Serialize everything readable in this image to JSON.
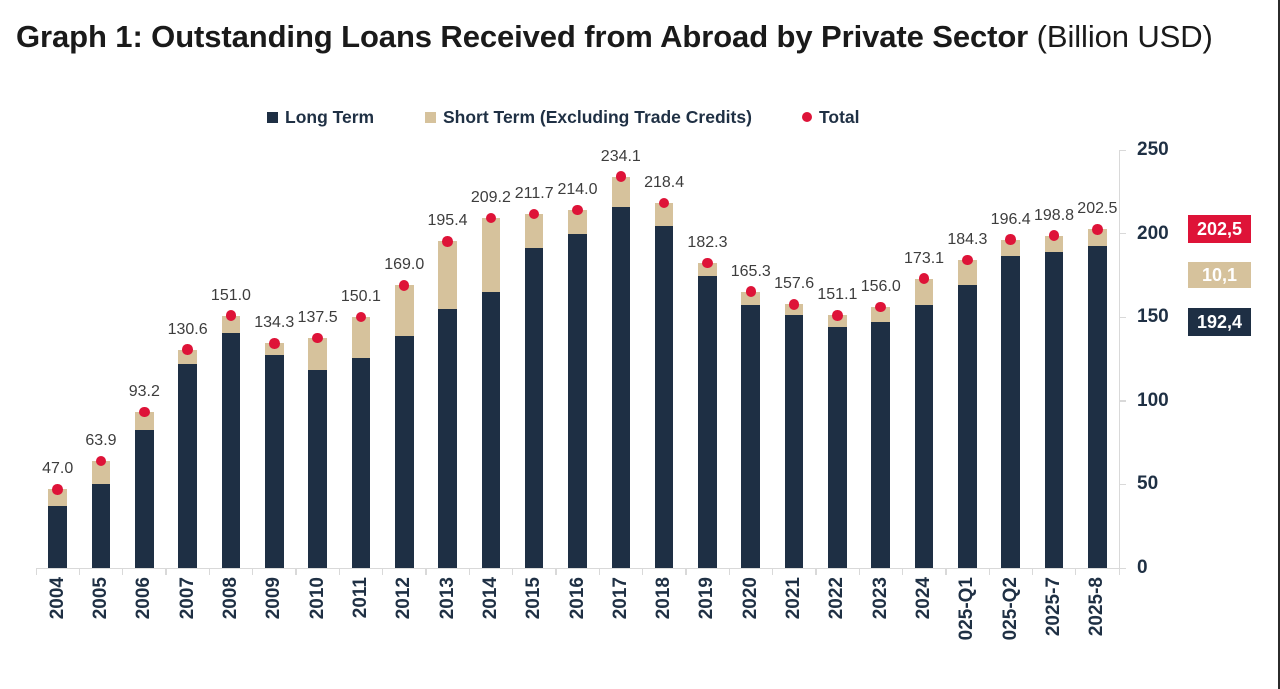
{
  "title": {
    "main": "Graph 1: Outstanding Loans Received from Abroad by Private Sector",
    "suffix": " (Billion USD)"
  },
  "legend": [
    {
      "label": "Long Term",
      "marker": "square",
      "color": "#1e2f44"
    },
    {
      "label": "Short Term (Excluding Trade Credits)",
      "marker": "square",
      "color": "#d6c29c"
    },
    {
      "label": "Total",
      "marker": "dot",
      "color": "#de1338"
    }
  ],
  "chart_data": {
    "type": "bar",
    "stacked": true,
    "title": "Graph 1: Outstanding Loans Received from Abroad by Private Sector (Billion USD)",
    "xlabel": "",
    "ylabel": "",
    "ylim": [
      0,
      250
    ],
    "yticks": [
      "0",
      "50",
      "100",
      "150",
      "200",
      "250"
    ],
    "grid": false,
    "legend_position": "top",
    "y_axis_side": "right",
    "categories": [
      "2004",
      "2005",
      "2006",
      "2007",
      "2008",
      "2009",
      "2010",
      "2011",
      "2012",
      "2013",
      "2014",
      "2015",
      "2016",
      "2017",
      "2018",
      "2019",
      "2020",
      "2021",
      "2022",
      "2023",
      "2024",
      "025-Q1",
      "025-Q2",
      "2025-7",
      "2025-8"
    ],
    "series": [
      {
        "name": "Long Term",
        "color": "#1e2f44",
        "values": [
          37.3,
          50.5,
          82.6,
          121.8,
          140.6,
          127.6,
          118.6,
          125.5,
          138.5,
          154.8,
          165.0,
          191.6,
          199.6,
          216.0,
          204.8,
          174.9,
          157.3,
          151.4,
          144.0,
          147.0,
          157.3,
          169.0,
          186.4,
          188.7,
          192.4
        ]
      },
      {
        "name": "Short Term (Excluding Trade Credits)",
        "color": "#d6c29c",
        "values": [
          9.7,
          13.4,
          10.6,
          8.8,
          10.4,
          6.7,
          18.9,
          24.6,
          30.5,
          40.6,
          44.2,
          20.1,
          14.4,
          18.1,
          13.6,
          7.4,
          8.0,
          6.2,
          7.1,
          9.0,
          15.8,
          15.3,
          10.0,
          10.1,
          10.1
        ]
      }
    ],
    "totals": {
      "name": "Total",
      "marker": "dot",
      "color": "#de1338",
      "values": [
        47.0,
        63.9,
        93.2,
        130.6,
        151.0,
        134.3,
        137.5,
        150.1,
        169.0,
        195.4,
        209.2,
        211.7,
        214.0,
        234.1,
        218.4,
        182.3,
        165.3,
        157.6,
        151.1,
        156.0,
        173.1,
        184.3,
        196.4,
        198.8,
        202.5
      ],
      "labels": [
        "47.0",
        "63.9",
        "93.2",
        "130.6",
        "151.0",
        "134.3",
        "137.5",
        "150.1",
        "169.0",
        "195.4",
        "209.2",
        "211.7",
        "214.0",
        "234.1",
        "218.4",
        "182.3",
        "165.3",
        "157.6",
        "151.1",
        "156.0",
        "173.1",
        "184.3",
        "196.4",
        "198.8",
        "202.5"
      ]
    },
    "callouts": [
      {
        "text": "202,5",
        "series": "Total",
        "color": "#de1338"
      },
      {
        "text": "10,1",
        "series": "Short Term (Excluding Trade Credits)",
        "color": "#d6c29c"
      },
      {
        "text": "192,4",
        "series": "Long Term",
        "color": "#1e2f44"
      }
    ]
  },
  "colors": {
    "long_term": "#1e2f44",
    "short_term": "#d6c29c",
    "total": "#de1338",
    "axis": "#d9d9d9",
    "axis_text": "#1f3044",
    "data_label": "#3d3d3d",
    "title": "#1a1a1a",
    "background": "#ffffff",
    "right_edge": "#2b2b2b"
  }
}
